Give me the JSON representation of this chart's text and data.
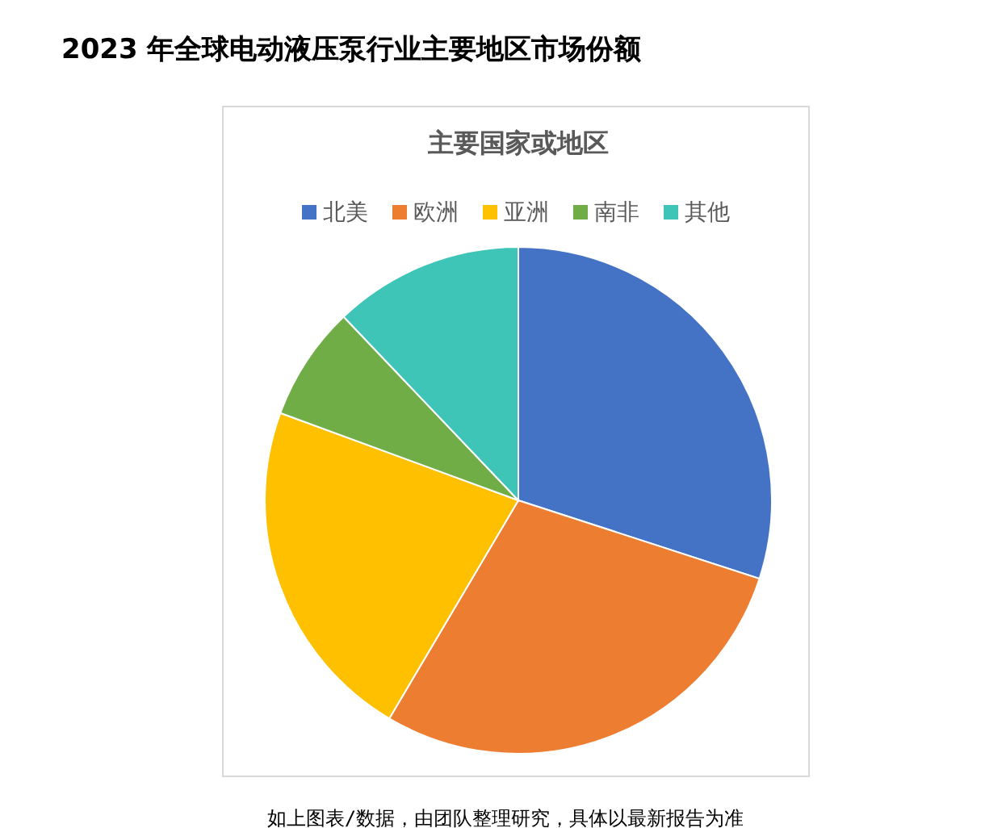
{
  "chart_data": {
    "type": "pie",
    "title": "2023 年全球电动液压泵行业主要地区市场份额",
    "subtitle": "主要国家或地区",
    "categories": [
      "北美",
      "欧洲",
      "亚洲",
      "南非",
      "其他"
    ],
    "values": [
      30,
      28.5,
      22.1,
      7.3,
      12.1
    ],
    "colors": [
      "#4472c4",
      "#ed7d31",
      "#ffc000",
      "#70ad47",
      "#3fc5b8"
    ],
    "legend": "top",
    "annotations": [
      "如上图表/数据，由团队整理研究，具体以最新报告为准"
    ]
  }
}
